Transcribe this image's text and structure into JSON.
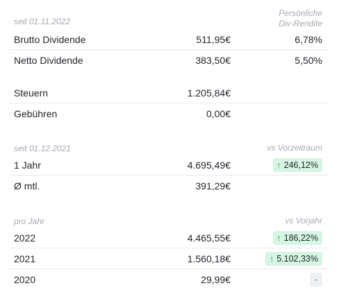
{
  "dividends": {
    "period_label": "seit 01.11.2022",
    "yield_label_line1": "Persönliche",
    "yield_label_line2": "Div-Rendite",
    "rows": [
      {
        "label": "Brutto Dividende",
        "value": "511,95€",
        "yield": "6,78%"
      },
      {
        "label": "Netto Dividende",
        "value": "383,50€",
        "yield": "5,50%"
      }
    ]
  },
  "fees": {
    "rows": [
      {
        "label": "Steuern",
        "value": "1.205,84€"
      },
      {
        "label": "Gebühren",
        "value": "0,00€"
      }
    ]
  },
  "period": {
    "period_label": "seit 01.12.2021",
    "compare_label": "vs Vorzeitraum",
    "rows": [
      {
        "label": "1 Jahr",
        "value": "4.695,49€",
        "change": "246,12%",
        "trend": "up"
      },
      {
        "label": "Ø mtl.",
        "value": "391,29€"
      }
    ]
  },
  "yearly": {
    "period_label": "pro Jahr",
    "compare_label": "vs Vorjahr",
    "rows": [
      {
        "label": "2022",
        "value": "4.465,55€",
        "change": "186,22%",
        "trend": "up"
      },
      {
        "label": "2021",
        "value": "1.560,18€",
        "change": "5.102,33%",
        "trend": "up"
      },
      {
        "label": "2020",
        "value": "29,99€",
        "change": "-",
        "trend": "none"
      }
    ]
  },
  "icons": {
    "trend_up": "arrow-up-icon"
  },
  "colors": {
    "positive_badge_bg": "#d6f5e3",
    "positive_arrow": "#1f9d55",
    "muted_label": "#a3a8b0",
    "divider": "#e9ebee"
  }
}
